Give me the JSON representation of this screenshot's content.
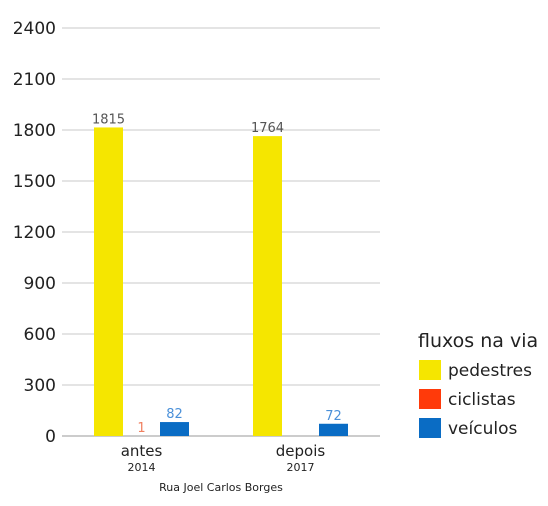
{
  "chart_data": {
    "type": "bar",
    "categories": [
      "antes",
      "depois"
    ],
    "category_sublabels": [
      "2014",
      "2017"
    ],
    "xlabel": "Rua Joel Carlos Borges",
    "ylabel": "",
    "ylim": [
      0,
      2400
    ],
    "yticks": [
      0,
      300,
      600,
      900,
      1200,
      1500,
      1800,
      2100,
      2400
    ],
    "grid": true,
    "legend_title": "fluxos na via",
    "legend_position": "right",
    "series": [
      {
        "name": "pedestres",
        "color": "#f5e600",
        "label_color": "#555555",
        "values": [
          1815,
          1764
        ],
        "labels": [
          "1815",
          "1764"
        ]
      },
      {
        "name": "ciclistas",
        "color": "#ff3a0a",
        "label_color": "#f08060",
        "values": [
          1,
          0
        ],
        "labels": [
          "1",
          ""
        ]
      },
      {
        "name": "veículos",
        "color": "#0a6cc4",
        "label_color": "#4a90d9",
        "values": [
          82,
          72
        ],
        "labels": [
          "82",
          "72"
        ]
      }
    ]
  }
}
